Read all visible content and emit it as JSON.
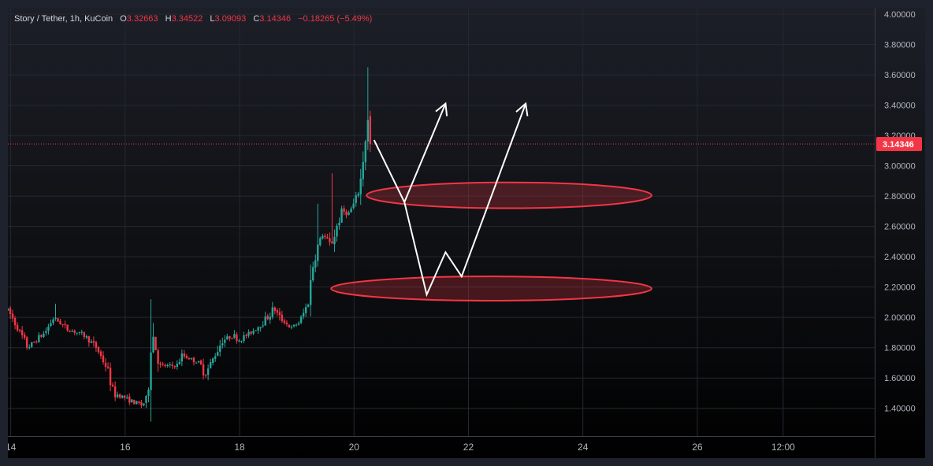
{
  "legend": {
    "symbol": "Story / Tether, 1h, KuCoin",
    "open_label": "O",
    "open": "3.32663",
    "high_label": "H",
    "high": "3.34522",
    "low_label": "L",
    "low": "3.09093",
    "close_label": "C",
    "close": "3.14346",
    "change": "−0.18265 (−5.49%)"
  },
  "colors": {
    "up": "#26a69a",
    "down": "#f23645",
    "zone": "#f23645",
    "arrow": "#ffffff",
    "grid": "#242833"
  },
  "chart_data": {
    "type": "candlestick",
    "ylim": [
      1.3,
      4.0
    ],
    "yticks": [
      4.0,
      3.8,
      3.6,
      3.4,
      3.2,
      3.0,
      2.8,
      2.6,
      2.4,
      2.2,
      2.0,
      1.8,
      1.6,
      1.4
    ],
    "ytick_labels": [
      "4.00000",
      "3.80000",
      "3.60000",
      "3.40000",
      "3.20000",
      "3.00000",
      "2.80000",
      "2.60000",
      "2.40000",
      "2.20000",
      "2.00000",
      "1.80000",
      "1.60000",
      "1.40000"
    ],
    "xticks": [
      14,
      16,
      18,
      20,
      22,
      24,
      26,
      27.5
    ],
    "xtick_labels": [
      "14",
      "16",
      "18",
      "20",
      "22",
      "24",
      "26",
      "12:00"
    ],
    "xlim": [
      13.95,
      29.1
    ],
    "last_price": 3.14346,
    "last_price_label": "3.14346",
    "anchors": [
      [
        13.95,
        2.05
      ],
      [
        14.3,
        1.8
      ],
      [
        14.6,
        1.9
      ],
      [
        14.75,
        2.0
      ],
      [
        15.0,
        1.92
      ],
      [
        15.3,
        1.88
      ],
      [
        15.5,
        1.8
      ],
      [
        15.7,
        1.65
      ],
      [
        15.8,
        1.5
      ],
      [
        16.0,
        1.47
      ],
      [
        16.1,
        1.45
      ],
      [
        16.3,
        1.42
      ],
      [
        16.4,
        1.48
      ],
      [
        16.45,
        1.95
      ],
      [
        16.6,
        1.68
      ],
      [
        16.9,
        1.68
      ],
      [
        17.0,
        1.75
      ],
      [
        17.3,
        1.7
      ],
      [
        17.4,
        1.62
      ],
      [
        17.5,
        1.7
      ],
      [
        17.7,
        1.85
      ],
      [
        17.9,
        1.88
      ],
      [
        18.0,
        1.85
      ],
      [
        18.2,
        1.9
      ],
      [
        18.5,
        2.0
      ],
      [
        18.6,
        2.06
      ],
      [
        18.7,
        2.0
      ],
      [
        18.9,
        1.93
      ],
      [
        19.05,
        1.97
      ],
      [
        19.2,
        2.1
      ],
      [
        19.3,
        2.4
      ],
      [
        19.45,
        2.55
      ],
      [
        19.6,
        2.47
      ],
      [
        19.7,
        2.6
      ],
      [
        19.8,
        2.7
      ],
      [
        19.9,
        2.68
      ],
      [
        20.0,
        2.75
      ],
      [
        20.1,
        2.85
      ],
      [
        20.2,
        3.2
      ],
      [
        20.25,
        3.3
      ],
      [
        20.32,
        3.14346
      ]
    ],
    "wick_spikes": [
      [
        14.8,
        2.09
      ],
      [
        16.45,
        2.12
      ],
      [
        19.35,
        2.75
      ],
      [
        19.6,
        2.95
      ],
      [
        20.26,
        3.65
      ]
    ]
  },
  "drawings": {
    "zones": [
      {
        "x_start": 20.22,
        "x_end": 25.2,
        "y_top": 2.89,
        "y_bottom": 2.72
      },
      {
        "x_start": 19.6,
        "x_end": 25.2,
        "y_top": 2.27,
        "y_bottom": 2.11
      }
    ],
    "path_a": [
      [
        20.35,
        3.17
      ],
      [
        20.88,
        2.76
      ],
      [
        21.27,
        2.15
      ],
      [
        21.6,
        2.43
      ],
      [
        21.88,
        2.27
      ],
      [
        23.0,
        3.41
      ]
    ],
    "path_b": [
      [
        20.88,
        2.76
      ],
      [
        21.6,
        3.41
      ]
    ]
  }
}
